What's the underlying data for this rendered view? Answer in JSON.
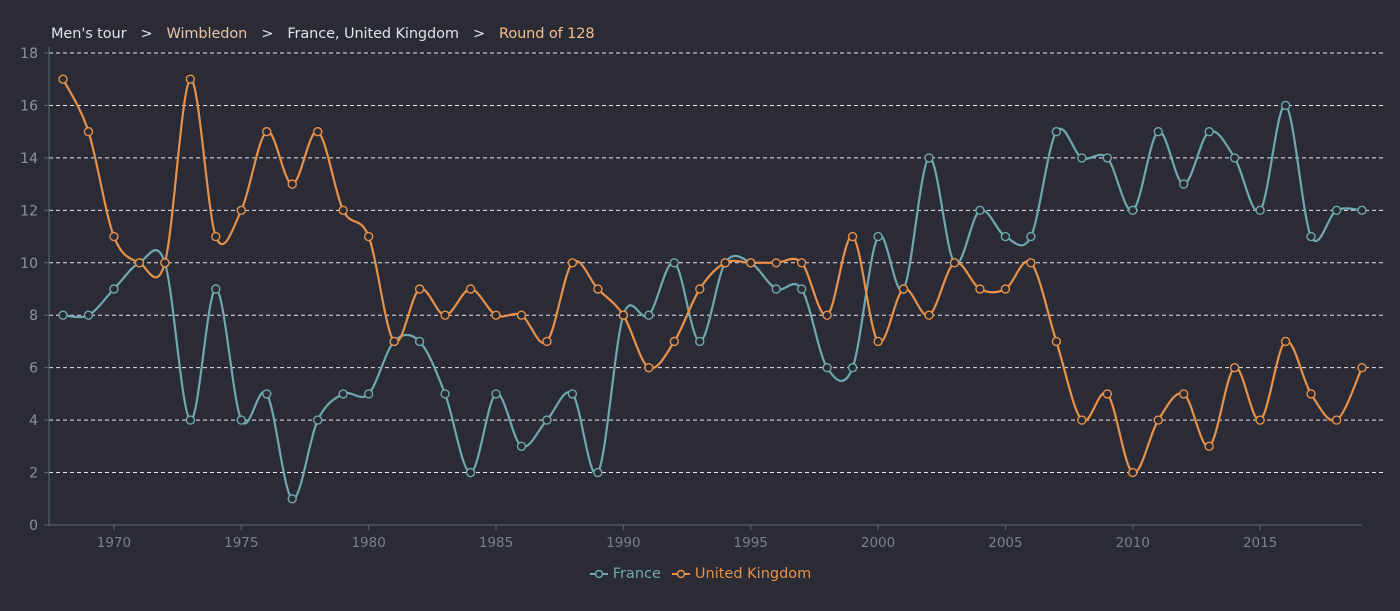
{
  "breadcrumb": {
    "items": [
      "Men's tour",
      "Wimbledon",
      "France, United Kingdom",
      "Round of 128"
    ],
    "separator": ">",
    "colors": [
      "#e0e3e8",
      "#e8c4a8",
      "#e0e3e8",
      "#f3c08a"
    ]
  },
  "chart_data": {
    "type": "line",
    "title": "",
    "xlabel": "",
    "ylabel": "",
    "x": [
      1968,
      1969,
      1970,
      1971,
      1972,
      1973,
      1974,
      1975,
      1976,
      1977,
      1978,
      1979,
      1980,
      1981,
      1982,
      1983,
      1984,
      1985,
      1986,
      1987,
      1988,
      1989,
      1990,
      1991,
      1992,
      1993,
      1994,
      1995,
      1996,
      1997,
      1998,
      1999,
      2000,
      2001,
      2002,
      2003,
      2004,
      2005,
      2006,
      2007,
      2008,
      2009,
      2010,
      2011,
      2012,
      2013,
      2014,
      2015,
      2016,
      2017,
      2018,
      2019
    ],
    "xlim": [
      1967.45,
      2019
    ],
    "ylim": [
      0,
      18
    ],
    "xticks": [
      1970,
      1975,
      1980,
      1985,
      1990,
      1995,
      2000,
      2005,
      2010,
      2015
    ],
    "yticks": [
      0,
      2,
      4,
      6,
      8,
      10,
      12,
      14,
      16,
      18
    ],
    "grid": true,
    "legend_position": "bottom-center",
    "series": [
      {
        "name": "France",
        "color": "#6fa8ae",
        "values": [
          8,
          8,
          9,
          10,
          10,
          4,
          9,
          4,
          5,
          1,
          4,
          5,
          5,
          7,
          7,
          5,
          2,
          5,
          3,
          4,
          5,
          2,
          8,
          8,
          10,
          7,
          10,
          10,
          9,
          9,
          6,
          6,
          11,
          9,
          14,
          10,
          12,
          11,
          11,
          15,
          14,
          14,
          12,
          15,
          13,
          15,
          14,
          12,
          16,
          11,
          12,
          12
        ]
      },
      {
        "name": "United Kingdom",
        "color": "#e8914a",
        "values": [
          17,
          15,
          11,
          10,
          10,
          17,
          11,
          12,
          15,
          13,
          15,
          12,
          11,
          7,
          9,
          8,
          9,
          8,
          8,
          7,
          10,
          9,
          8,
          6,
          7,
          9,
          10,
          10,
          10,
          10,
          8,
          11,
          7,
          9,
          8,
          10,
          9,
          9,
          10,
          7,
          4,
          5,
          2,
          4,
          5,
          3,
          6,
          4,
          7,
          5,
          4,
          6
        ]
      }
    ]
  }
}
